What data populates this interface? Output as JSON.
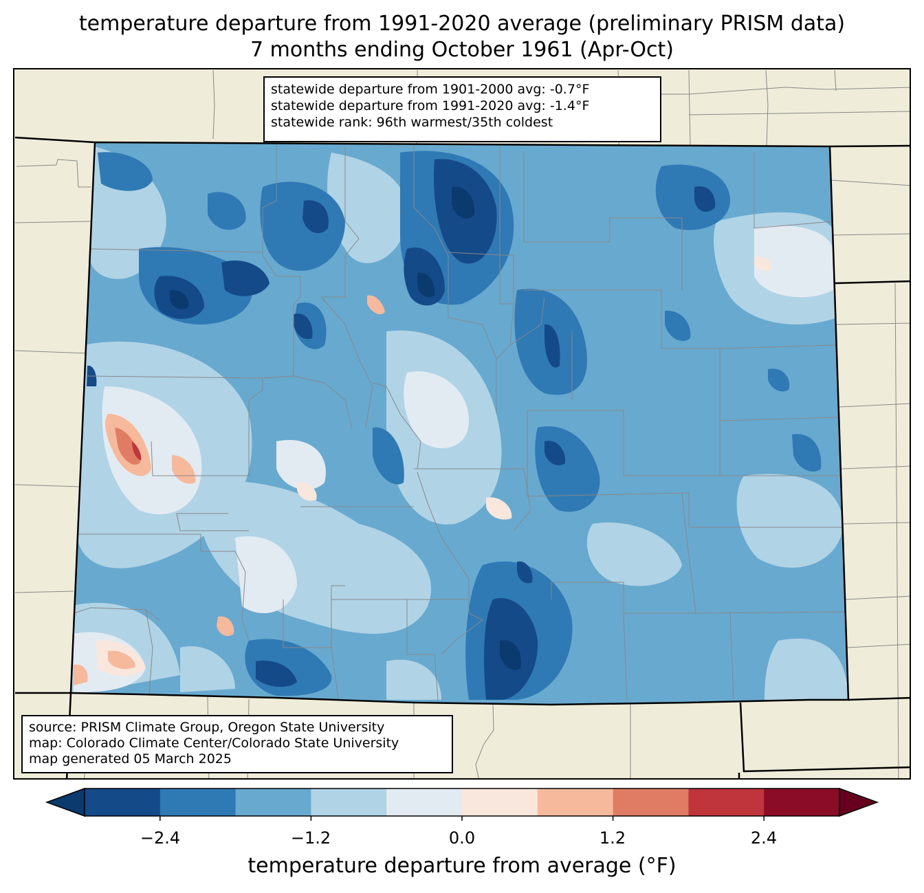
{
  "title_line1": "temperature departure from 1991-2020 average (preliminary PRISM data)",
  "title_line2": "7 months ending October 1961 (Apr-Oct)",
  "stats": {
    "line1": "statewide departure from 1901-2000 avg: -0.7°F",
    "line2": "statewide departure from 1991-2020 avg: -1.4°F",
    "line3": "statewide rank: 96th warmest/35th coldest"
  },
  "source": {
    "line1": "source: PRISM Climate Group, Oregon State University",
    "line2": "map: Colorado Climate Center/Colorado State University",
    "line3": "map generated 05 March 2025"
  },
  "colorbar": {
    "label": "temperature departure from average (°F)",
    "ticks": [
      "−2.4",
      "−1.2",
      "0.0",
      "1.2",
      "2.4"
    ],
    "levels": [
      -3.0,
      -2.4,
      -1.8,
      -1.2,
      -0.6,
      0.0,
      0.6,
      1.2,
      1.8,
      2.4,
      3.0
    ],
    "colors": [
      "#0b3a6e",
      "#154a89",
      "#2f79b5",
      "#68a9d0",
      "#b0d3e6",
      "#e3ebf2",
      "#f9e6dd",
      "#f6b99c",
      "#e07c63",
      "#c0353c",
      "#8a0c26",
      "#67001f"
    ]
  }
}
